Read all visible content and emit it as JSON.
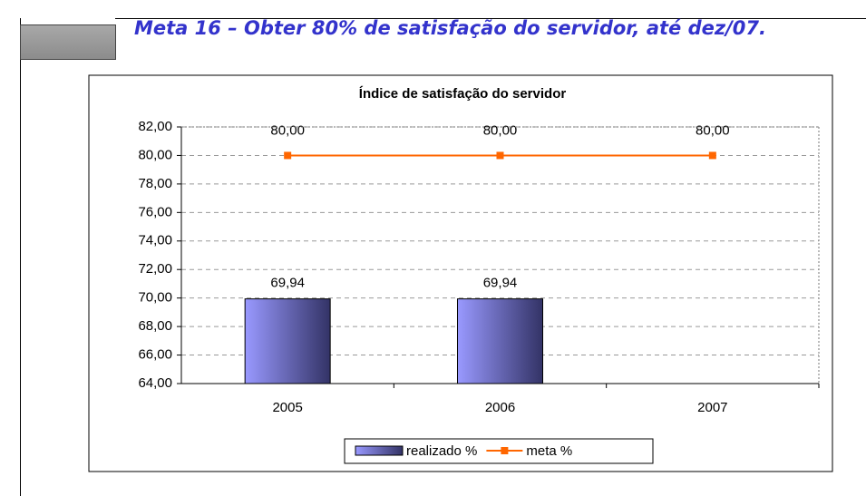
{
  "heading": "Meta 16 – Obter 80% de satisfação do servidor, até dez/07.",
  "chart_data": {
    "type": "bar_line",
    "title": "Índice de satisfação do servidor",
    "categories": [
      "2005",
      "2006",
      "2007"
    ],
    "series": [
      {
        "name": "realizado %",
        "type": "bar",
        "color": "#9999ff",
        "values": [
          69.94,
          69.94,
          null
        ],
        "value_labels": [
          "69,94",
          "69,94",
          null
        ]
      },
      {
        "name": "meta %",
        "type": "line",
        "color": "#ff6600",
        "values": [
          80,
          80,
          80
        ],
        "value_labels": [
          "80,00",
          "80,00",
          "80,00"
        ]
      }
    ],
    "ylim": [
      64,
      82
    ],
    "yticks": [
      {
        "value": 64,
        "label": "64,00"
      },
      {
        "value": 66,
        "label": "66,00"
      },
      {
        "value": 68,
        "label": "68,00"
      },
      {
        "value": 70,
        "label": "70,00"
      },
      {
        "value": 72,
        "label": "72,00"
      },
      {
        "value": 74,
        "label": "74,00"
      },
      {
        "value": 76,
        "label": "76,00"
      },
      {
        "value": 78,
        "label": "78,00"
      },
      {
        "value": 80,
        "label": "80,00"
      },
      {
        "value": 82,
        "label": "82,00"
      }
    ],
    "grid": true,
    "legend": "bottom"
  }
}
